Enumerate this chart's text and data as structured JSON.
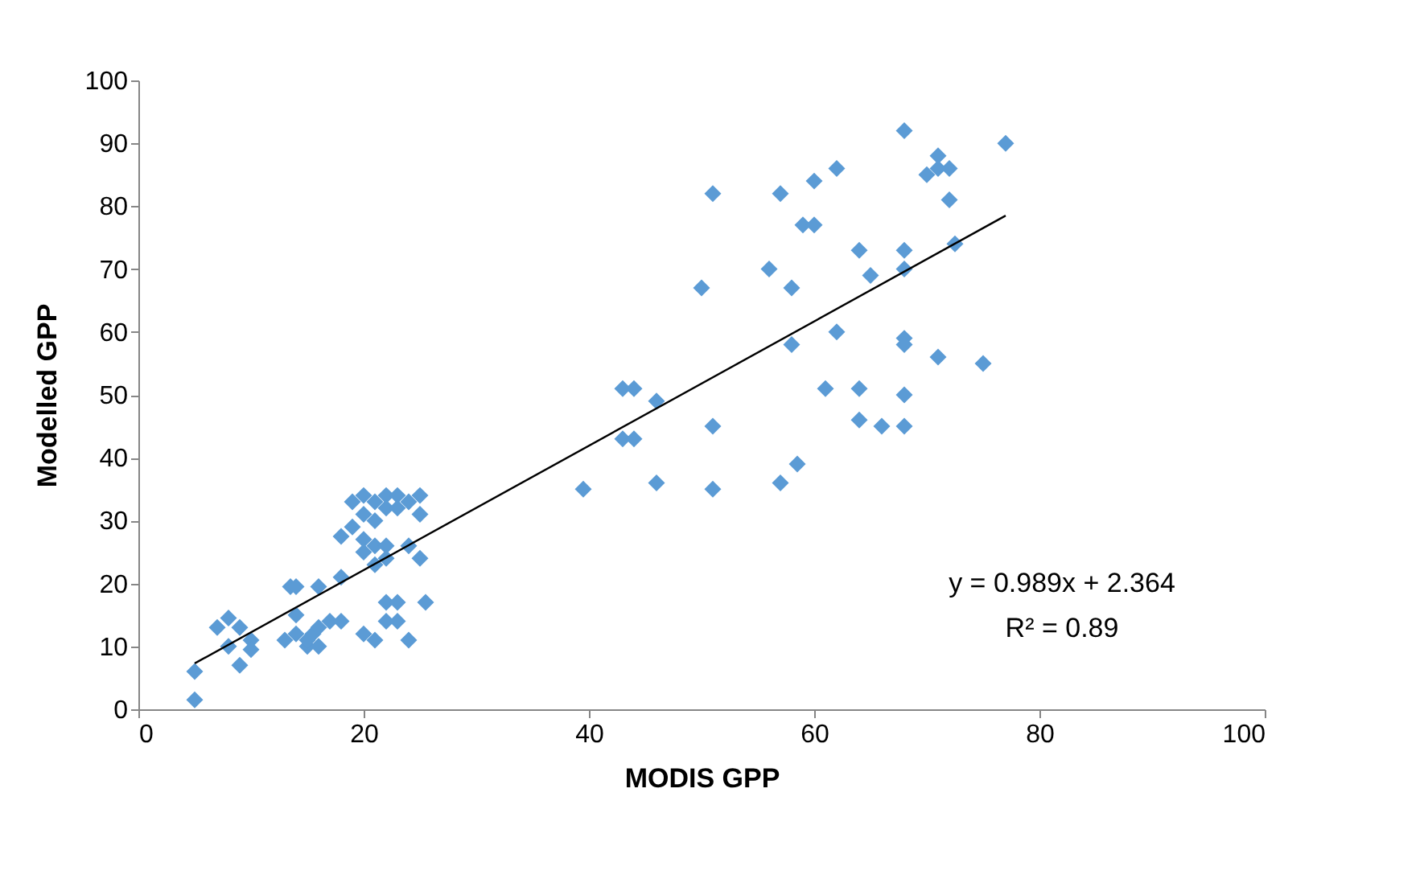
{
  "chart_data": {
    "type": "scatter",
    "xlabel": "MODIS GPP",
    "ylabel": "Modelled GPP",
    "xlim": [
      0,
      100
    ],
    "xticks": [
      0,
      20,
      40,
      60,
      80,
      100
    ],
    "ylim": [
      0,
      100
    ],
    "yticks": [
      0,
      10,
      20,
      30,
      40,
      50,
      60,
      70,
      80,
      90,
      100
    ],
    "grid": false,
    "marker": "diamond",
    "annotations": [
      "y = 0.989x + 2.364",
      "R² = 0.89"
    ],
    "series": [
      {
        "color": "#5b9bd5",
        "x": [
          51,
          57,
          62,
          60,
          59,
          60,
          56,
          58,
          50,
          68,
          77,
          70,
          71,
          72,
          71,
          72,
          72.5,
          68,
          64,
          68,
          65,
          62,
          58,
          68,
          68,
          71,
          75,
          61,
          64,
          68,
          64,
          66,
          68,
          58.5,
          57,
          51,
          51,
          46,
          44,
          43,
          43,
          44,
          46,
          39.5,
          5,
          5,
          7,
          8,
          8,
          9,
          9,
          10,
          10,
          13,
          13.5,
          14,
          14,
          14,
          15,
          15,
          15.5,
          16,
          16,
          16,
          17,
          18,
          18,
          18,
          19,
          19,
          20,
          20,
          20,
          20,
          20,
          21,
          21,
          21,
          21,
          21,
          22,
          22,
          22,
          22,
          22,
          22,
          23,
          23,
          23,
          23,
          24,
          24,
          24,
          25,
          25,
          25,
          25.5
        ],
        "values": [
          82,
          82,
          86,
          84,
          77,
          77,
          70,
          67,
          67,
          92,
          90,
          85,
          88,
          86,
          86,
          81,
          74,
          73,
          73,
          70,
          69,
          60,
          58,
          59,
          58,
          56,
          55,
          51,
          51,
          50,
          46,
          45,
          45,
          39,
          36,
          45,
          35,
          49,
          51,
          51,
          43,
          43,
          36,
          35,
          6,
          1.5,
          13,
          14.5,
          10,
          13,
          7,
          11,
          9.5,
          11,
          19.5,
          19.5,
          15,
          12,
          10,
          11,
          12,
          19.5,
          10,
          13,
          14,
          14,
          21,
          27.5,
          29,
          33,
          31,
          34,
          27,
          25,
          12,
          33,
          30,
          26,
          23,
          11,
          34,
          32,
          26,
          24,
          17,
          14,
          34,
          32,
          17,
          14,
          33,
          26,
          11,
          34,
          31,
          24,
          17
        ]
      },
      {
        "type": "line",
        "marker": "none",
        "color": "#000000",
        "x": [
          5,
          77
        ],
        "values": [
          7.3,
          78.5
        ]
      }
    ]
  }
}
